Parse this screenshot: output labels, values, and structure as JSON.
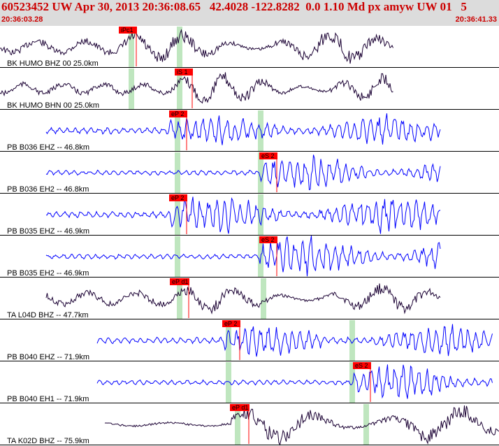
{
  "header": {
    "title": "60523452 UW Apr 30, 2013 20:36:08.65   42.4028 -122.8282  0.0 1.10 Md px amyw UW 01   5",
    "start_time": "20:36:03.28",
    "end_time": "20:36:41.33"
  },
  "colors": {
    "header_bg": "#dcdcdc",
    "header_text": "#cc0000",
    "trace_blue": "#0000ff",
    "trace_dark": "#1a0033",
    "pick_red": "#ff0000",
    "window_green": "#bfe6bf"
  },
  "channels": [
    {
      "label": "BK HUMO BHZ 00 25.0km",
      "pick": "iPc1",
      "color": "dark"
    },
    {
      "label": "BK HUMO BHN 00 25.0km",
      "pick": "iS 1",
      "color": "dark"
    },
    {
      "label": "PB B036 EHZ -- 46.8km",
      "pick": "eP 2",
      "color": "blue"
    },
    {
      "label": "PB B036 EH2 -- 46.8km",
      "pick": "eS 2",
      "color": "blue"
    },
    {
      "label": "PB B035 EHZ -- 46.9km",
      "pick": "eP 2",
      "color": "blue"
    },
    {
      "label": "PB B035 EH2 -- 46.9km",
      "pick": "eS 2",
      "color": "blue"
    },
    {
      "label": "TA L04D BHZ -- 47.7km",
      "pick": "eP d1",
      "color": "dark"
    },
    {
      "label": "PB B040 EHZ -- 71.9km",
      "pick": "eP 2",
      "color": "blue"
    },
    {
      "label": "PB B040 EH1 -- 71.9km",
      "pick": "eS 2",
      "color": "blue"
    },
    {
      "label": "TA K02D BHZ -- 75.9km",
      "pick": "eP d1",
      "color": "dark"
    }
  ]
}
